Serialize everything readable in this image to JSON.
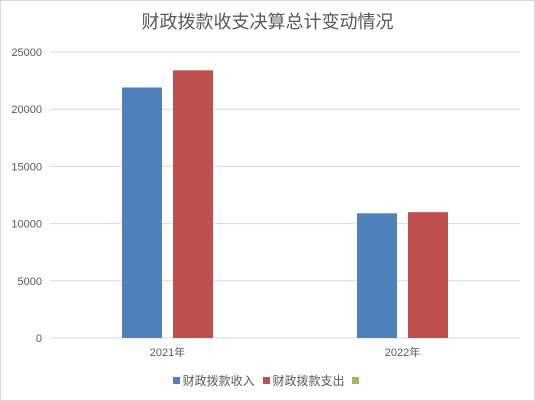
{
  "chart_data": {
    "type": "bar",
    "title": "财政拨款收支决算总计变动情况",
    "categories": [
      "2021年",
      "2022年"
    ],
    "series": [
      {
        "name": "财政拨款收入",
        "color": "#4f81bd",
        "values": [
          21900,
          10900
        ]
      },
      {
        "name": "财政拨款支出",
        "color": "#c0504d",
        "values": [
          23400,
          11000
        ]
      },
      {
        "name": "",
        "color": "#9bbb59",
        "values": [
          0,
          0
        ]
      }
    ],
    "ylim": [
      0,
      25000
    ],
    "yticks": [
      "0",
      "5000",
      "10000",
      "15000",
      "20000",
      "25000"
    ],
    "xlabel": "",
    "ylabel": "",
    "grid": true,
    "legend_position": "bottom"
  }
}
